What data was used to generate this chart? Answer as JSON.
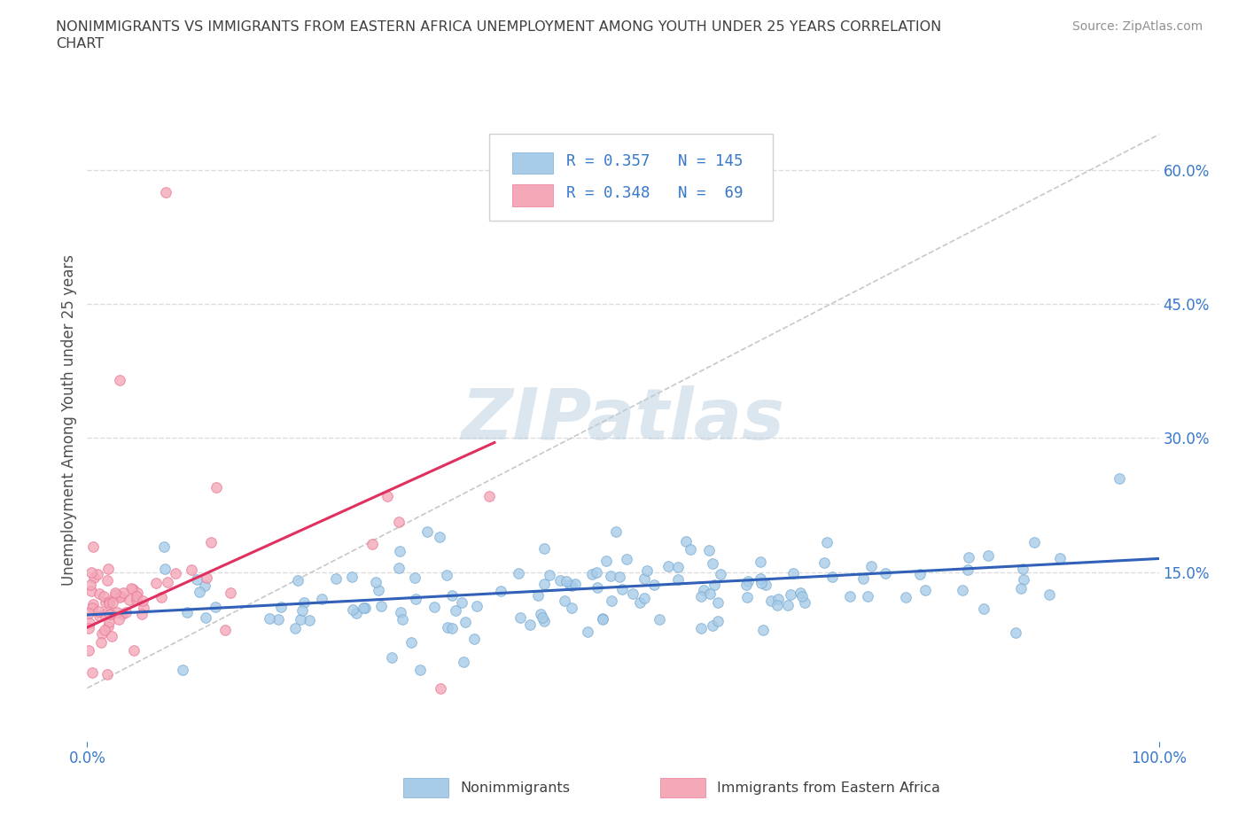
{
  "title_line1": "NONIMMIGRANTS VS IMMIGRANTS FROM EASTERN AFRICA UNEMPLOYMENT AMONG YOUTH UNDER 25 YEARS CORRELATION",
  "title_line2": "CHART",
  "source_text": "Source: ZipAtlas.com",
  "ylabel": "Unemployment Among Youth under 25 years",
  "watermark": "ZIPatlas",
  "xlim": [
    0,
    1
  ],
  "ylim": [
    -0.04,
    0.68
  ],
  "right_yticks": [
    0.15,
    0.3,
    0.45,
    0.6
  ],
  "right_yticklabels": [
    "15.0%",
    "30.0%",
    "45.0%",
    "60.0%"
  ],
  "xticks": [
    0.0,
    1.0
  ],
  "xticklabels": [
    "0.0%",
    "100.0%"
  ],
  "blue_R": 0.357,
  "blue_N": 145,
  "pink_R": 0.348,
  "pink_N": 69,
  "blue_color": "#A8CCE8",
  "pink_color": "#F4A8B8",
  "blue_edge_color": "#7AACD4",
  "pink_edge_color": "#E87898",
  "trend_blue_color": "#3060B8",
  "trend_pink_color": "#E03060",
  "trend_ref_color": "#C8C8C8",
  "grid_color": "#DCDCDC",
  "background_color": "#FFFFFF",
  "title_color": "#404040",
  "axis_color": "#3878C8",
  "legend_label_color": "#3878C8",
  "seed": 42
}
